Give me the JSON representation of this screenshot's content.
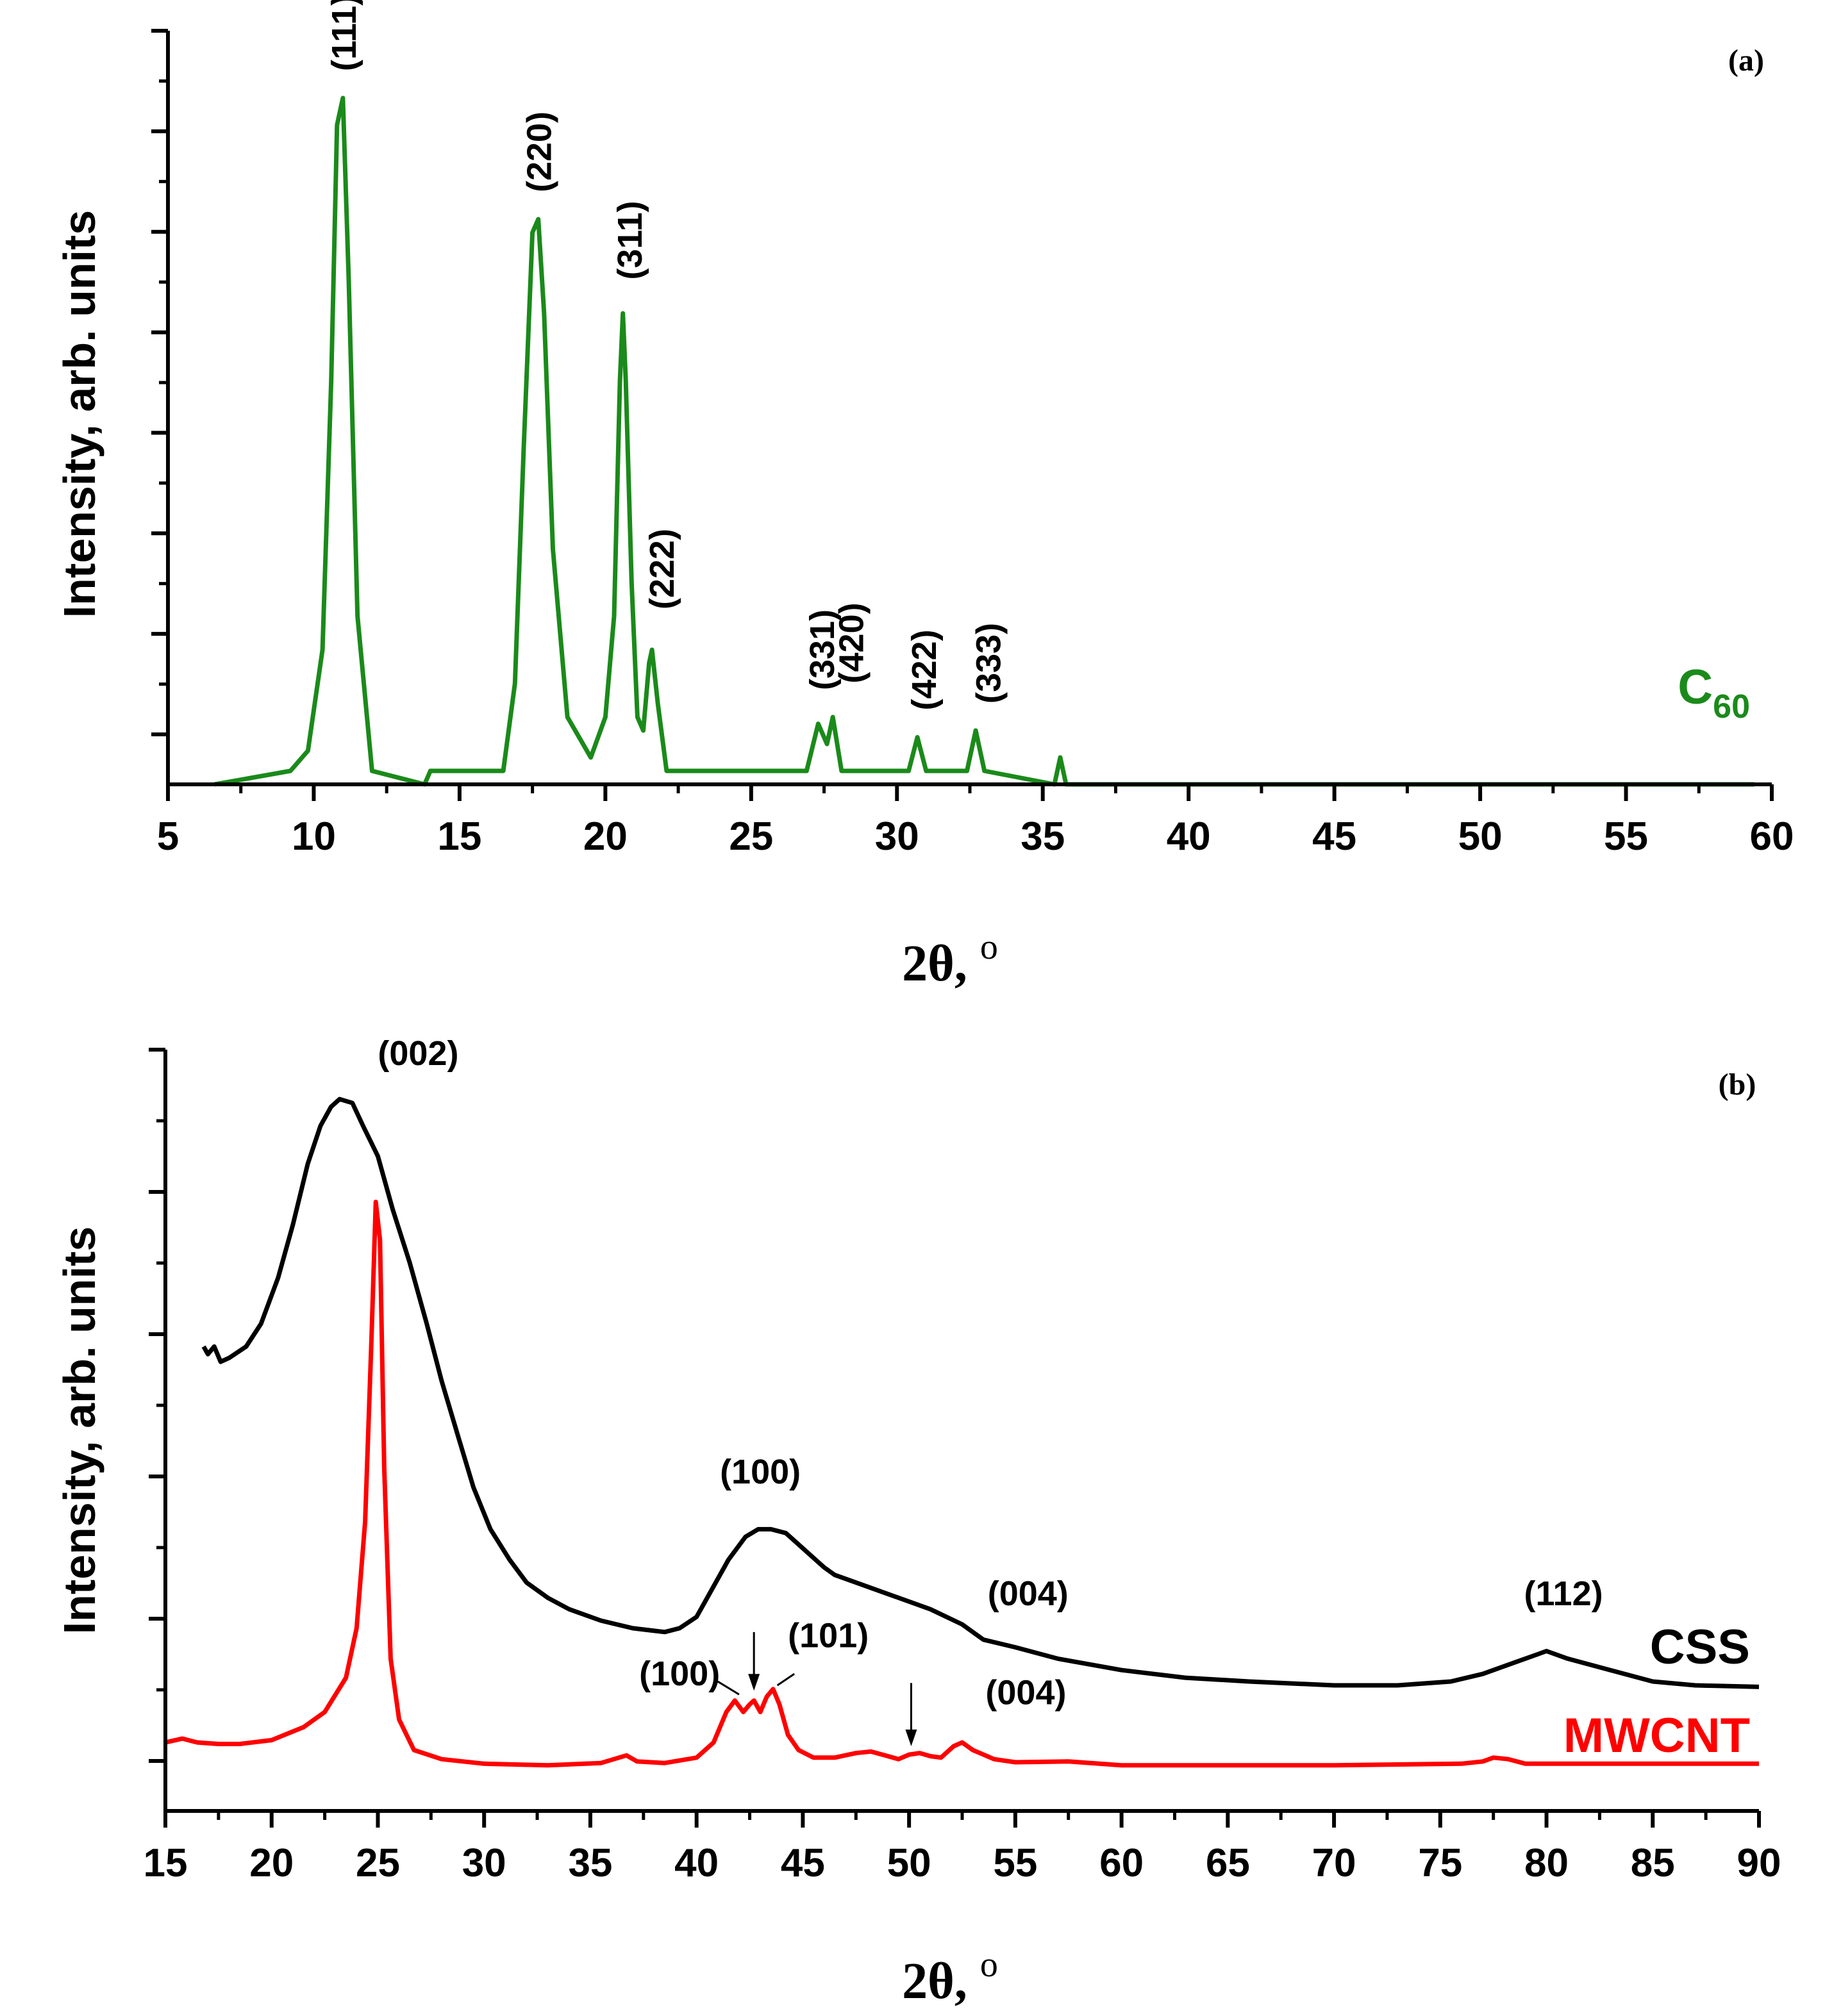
{
  "chart_data": [
    {
      "type": "line",
      "panel_label": "(a)",
      "xlabel": "2θ, ",
      "xlabel_unit": "o",
      "ylabel": "Intensity, arb. units",
      "xlim": [
        5,
        60
      ],
      "ylim": [
        0,
        1.12
      ],
      "xticks": [
        5,
        10,
        15,
        20,
        25,
        30,
        35,
        40,
        45,
        50,
        55,
        60
      ],
      "grid": false,
      "series": [
        {
          "name": "C",
          "name_sub": "60",
          "color": "#1a8a1a",
          "x": [
            6.6,
            9.2,
            9.8,
            10.3,
            10.6,
            10.8,
            11.0,
            11.2,
            11.5,
            12.0,
            13.8,
            14.0,
            14.3,
            16.5,
            16.9,
            17.2,
            17.5,
            17.7,
            17.9,
            18.2,
            18.7,
            19.5,
            20.0,
            20.3,
            20.5,
            20.6,
            20.7,
            20.9,
            21.1,
            21.3,
            21.5,
            21.6,
            21.8,
            22.1,
            26.9,
            27.3,
            27.6,
            27.8,
            28.1,
            30.4,
            30.7,
            31.0,
            32.4,
            32.7,
            33.0,
            35.4,
            35.6,
            35.8,
            59.4
          ],
          "y": [
            0.0,
            0.02,
            0.05,
            0.2,
            0.6,
            0.98,
            1.02,
            0.75,
            0.25,
            0.02,
            0.0,
            0.02,
            0.02,
            0.02,
            0.15,
            0.5,
            0.82,
            0.84,
            0.7,
            0.35,
            0.1,
            0.04,
            0.1,
            0.25,
            0.6,
            0.7,
            0.6,
            0.3,
            0.1,
            0.08,
            0.18,
            0.2,
            0.12,
            0.02,
            0.02,
            0.09,
            0.06,
            0.1,
            0.02,
            0.02,
            0.07,
            0.02,
            0.02,
            0.08,
            0.02,
            0.0,
            0.04,
            0.0,
            0.0
          ]
        }
      ],
      "annotations": [
        {
          "text": "(111)",
          "x": 11.0,
          "y": 1.06
        },
        {
          "text": "(220)",
          "x": 17.7,
          "y": 0.88
        },
        {
          "text": "(311)",
          "x": 20.8,
          "y": 0.75
        },
        {
          "text": "(222)",
          "x": 21.9,
          "y": 0.26
        },
        {
          "text": "(331)",
          "x": 27.4,
          "y": 0.14
        },
        {
          "text": "(420)",
          "x": 28.4,
          "y": 0.15
        },
        {
          "text": "(422)",
          "x": 30.9,
          "y": 0.11
        },
        {
          "text": "(333)",
          "x": 33.1,
          "y": 0.12
        }
      ]
    },
    {
      "type": "line",
      "panel_label": "(b)",
      "xlabel": "2θ, ",
      "xlabel_unit": "o",
      "ylabel": "Intensity, arb. units",
      "xlim": [
        15,
        90
      ],
      "ylim": [
        0,
        1.0
      ],
      "xticks": [
        15,
        20,
        25,
        30,
        35,
        40,
        45,
        50,
        55,
        60,
        65,
        70,
        75,
        80,
        85,
        90
      ],
      "grid": false,
      "series": [
        {
          "name": "CSS",
          "color": "#000000",
          "x": [
            16.8,
            17.0,
            17.3,
            17.6,
            18.0,
            18.8,
            19.5,
            20.3,
            21.0,
            21.7,
            22.3,
            22.8,
            23.2,
            23.8,
            24.3,
            25.0,
            25.7,
            26.5,
            27.3,
            28.0,
            28.8,
            29.5,
            30.3,
            31.2,
            32.0,
            33.0,
            34.0,
            35.5,
            37.0,
            38.5,
            39.2,
            40.0,
            40.7,
            41.5,
            42.3,
            42.9,
            43.5,
            44.2,
            45.0,
            46.0,
            46.5,
            47.5,
            49.0,
            51.0,
            52.5,
            53.5,
            55.0,
            57.0,
            60.0,
            63.0,
            66.0,
            70.0,
            73.0,
            75.5,
            77.0,
            78.5,
            79.5,
            80.0,
            81.0,
            83.0,
            85.0,
            87.0,
            90.0
          ],
          "y": [
            0.61,
            0.6,
            0.61,
            0.59,
            0.595,
            0.61,
            0.64,
            0.7,
            0.77,
            0.85,
            0.9,
            0.925,
            0.935,
            0.93,
            0.9,
            0.86,
            0.79,
            0.72,
            0.64,
            0.565,
            0.49,
            0.425,
            0.37,
            0.33,
            0.3,
            0.28,
            0.265,
            0.25,
            0.24,
            0.235,
            0.24,
            0.255,
            0.29,
            0.33,
            0.36,
            0.37,
            0.37,
            0.365,
            0.345,
            0.32,
            0.31,
            0.3,
            0.285,
            0.265,
            0.245,
            0.225,
            0.215,
            0.2,
            0.185,
            0.175,
            0.17,
            0.165,
            0.165,
            0.17,
            0.18,
            0.195,
            0.205,
            0.21,
            0.2,
            0.185,
            0.17,
            0.165,
            0.163
          ]
        },
        {
          "name": "MWCNT",
          "color": "#ff0000",
          "x": [
            15.0,
            15.8,
            16.5,
            17.5,
            18.5,
            20.0,
            21.5,
            22.5,
            23.5,
            24.0,
            24.4,
            24.7,
            24.9,
            25.1,
            25.3,
            25.6,
            26.0,
            26.7,
            28.0,
            30.0,
            33.0,
            35.5,
            36.7,
            37.2,
            38.5,
            40.0,
            40.8,
            41.4,
            41.8,
            42.2,
            42.5,
            42.7,
            43.0,
            43.3,
            43.6,
            43.9,
            44.3,
            44.8,
            45.5,
            46.5,
            47.5,
            48.2,
            49.0,
            49.5,
            50.0,
            50.5,
            51.0,
            51.5,
            52.1,
            52.5,
            53.0,
            54.0,
            55.0,
            57.5,
            60.0,
            65.0,
            70.0,
            76.0,
            77.0,
            77.5,
            78.2,
            79.0,
            80.0,
            90.0
          ],
          "y": [
            0.09,
            0.095,
            0.09,
            0.088,
            0.088,
            0.093,
            0.11,
            0.13,
            0.175,
            0.24,
            0.38,
            0.62,
            0.8,
            0.75,
            0.45,
            0.2,
            0.12,
            0.08,
            0.068,
            0.062,
            0.06,
            0.063,
            0.073,
            0.065,
            0.063,
            0.07,
            0.09,
            0.13,
            0.145,
            0.13,
            0.14,
            0.145,
            0.13,
            0.15,
            0.16,
            0.14,
            0.1,
            0.08,
            0.07,
            0.07,
            0.076,
            0.078,
            0.072,
            0.068,
            0.074,
            0.076,
            0.072,
            0.07,
            0.085,
            0.09,
            0.08,
            0.068,
            0.064,
            0.065,
            0.06,
            0.06,
            0.06,
            0.062,
            0.065,
            0.07,
            0.068,
            0.062,
            0.062,
            0.062
          ]
        }
      ],
      "annotations": [
        {
          "text": "(002)",
          "x": 26.9,
          "y": 0.98,
          "color": "#000000"
        },
        {
          "text": "(100)",
          "x": 43.0,
          "y": 0.43,
          "color": "#000000"
        },
        {
          "text": "(004)",
          "x": 55.6,
          "y": 0.27,
          "color": "#000000"
        },
        {
          "text": "(112)",
          "x": 80.8,
          "y": 0.27,
          "color": "#000000"
        },
        {
          "text": "(100)",
          "x": 39.2,
          "y": 0.165,
          "color": "#000000"
        },
        {
          "text": "(101)",
          "x": 46.2,
          "y": 0.215,
          "color": "#000000"
        },
        {
          "text": "(004)",
          "x": 55.5,
          "y": 0.14,
          "color": "#000000"
        }
      ],
      "arrows": [
        {
          "x": 42.7,
          "y_from": 0.235,
          "y_to": 0.158
        },
        {
          "x": 50.1,
          "y_from": 0.168,
          "y_to": 0.085
        }
      ],
      "leader_lines": [
        {
          "x1": 41.0,
          "y1": 0.17,
          "x2": 42.0,
          "y2": 0.153
        },
        {
          "x1": 44.6,
          "y1": 0.18,
          "x2": 43.8,
          "y2": 0.165
        }
      ]
    }
  ]
}
